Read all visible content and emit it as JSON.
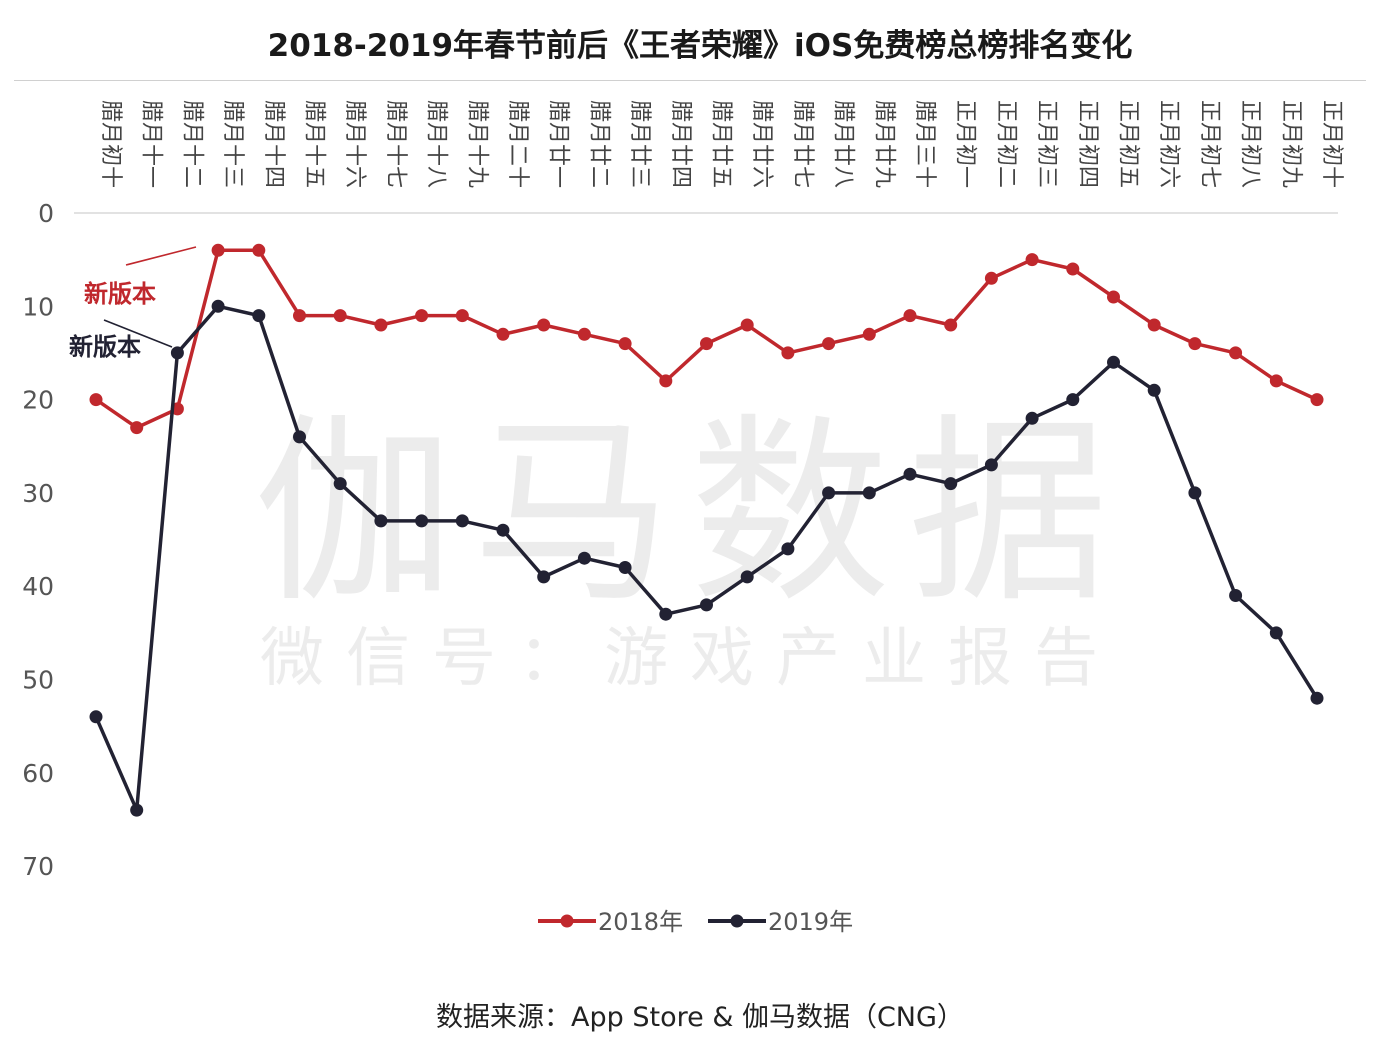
{
  "chart_data": {
    "type": "line",
    "title": "2018-2019年春节前后《王者荣耀》iOS免费榜总榜排名变化",
    "categories": [
      "腊月初十",
      "腊月十一",
      "腊月十二",
      "腊月十三",
      "腊月十四",
      "腊月十五",
      "腊月十六",
      "腊月十七",
      "腊月十八",
      "腊月十九",
      "腊月二十",
      "腊月廿一",
      "腊月廿二",
      "腊月廿三",
      "腊月廿四",
      "腊月廿五",
      "腊月廿六",
      "腊月廿七",
      "腊月廿八",
      "腊月廿九",
      "腊月三十",
      "正月初一",
      "正月初二",
      "正月初三",
      "正月初四",
      "正月初五",
      "正月初六",
      "正月初七",
      "正月初八",
      "正月初九",
      "正月初十"
    ],
    "series": [
      {
        "name": "2018年",
        "color": "#c0282d",
        "values": [
          20,
          23,
          21,
          4,
          4,
          11,
          11,
          12,
          11,
          11,
          13,
          12,
          13,
          14,
          18,
          14,
          12,
          15,
          14,
          13,
          11,
          12,
          7,
          5,
          6,
          9,
          12,
          14,
          15,
          18,
          20
        ]
      },
      {
        "name": "2019年",
        "color": "#222233",
        "values": [
          54,
          64,
          15,
          10,
          11,
          24,
          29,
          33,
          33,
          33,
          34,
          39,
          37,
          38,
          43,
          42,
          39,
          36,
          30,
          30,
          28,
          29,
          27,
          22,
          20,
          16,
          19,
          30,
          41,
          45,
          52
        ]
      }
    ],
    "y_axis": {
      "ticks": [
        "0",
        "10",
        "20",
        "30",
        "40",
        "50",
        "60",
        "70"
      ],
      "range": [
        0,
        70
      ],
      "reversed": true
    },
    "annotations": [
      {
        "text": "新版本",
        "color": "#c0282d",
        "series_index": 0,
        "category_index": 3
      },
      {
        "text": "新版本",
        "color": "#222233",
        "series_index": 1,
        "category_index": 2
      }
    ],
    "legend_position": "bottom",
    "grid": false
  },
  "watermark": {
    "main": "伽马数据",
    "sub": "微信号：游戏产业报告"
  },
  "source": "数据来源：App Store & 伽马数据（CNG）"
}
